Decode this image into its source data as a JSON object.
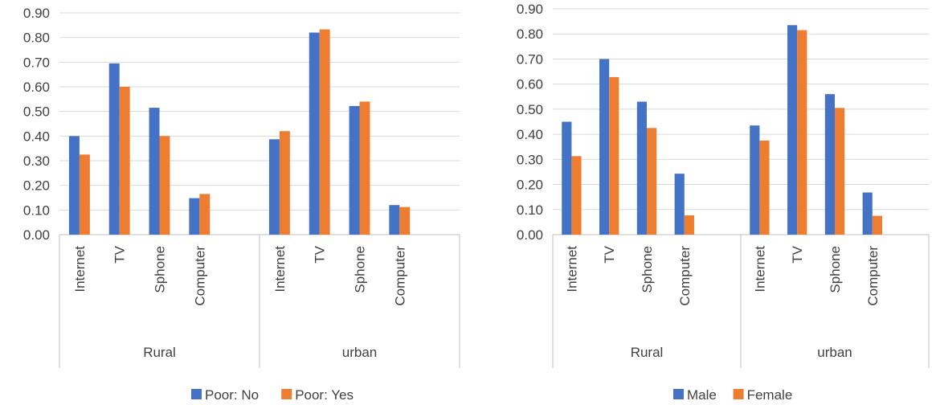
{
  "chart_data": [
    {
      "type": "bar",
      "y_ticks": [
        "0.00",
        "0.10",
        "0.20",
        "0.30",
        "0.40",
        "0.50",
        "0.60",
        "0.70",
        "0.80",
        "0.90"
      ],
      "ylim": [
        0,
        0.9
      ],
      "groups": [
        {
          "label": "Rural",
          "categories": [
            "Internet",
            "TV",
            "Sphone",
            "Computer"
          ]
        },
        {
          "label": "urban",
          "categories": [
            "Internet",
            "TV",
            "Sphone",
            "Computer"
          ]
        }
      ],
      "series": [
        {
          "name": "Poor: No",
          "color": "#4472c4",
          "values": [
            0.4,
            0.695,
            0.515,
            0.148,
            0.387,
            0.82,
            0.522,
            0.12
          ]
        },
        {
          "name": "Poor: Yes",
          "color": "#ed7d31",
          "values": [
            0.325,
            0.6,
            0.4,
            0.165,
            0.42,
            0.833,
            0.54,
            0.112
          ]
        }
      ],
      "grid": true,
      "legend": "bottom"
    },
    {
      "type": "bar",
      "y_ticks": [
        "0.00",
        "0.10",
        "0.20",
        "0.30",
        "0.40",
        "0.50",
        "0.60",
        "0.70",
        "0.80",
        "0.90"
      ],
      "ylim": [
        0,
        0.9
      ],
      "groups": [
        {
          "label": "Rural",
          "categories": [
            "Internet",
            "TV",
            "Sphone",
            "Computer"
          ]
        },
        {
          "label": "urban",
          "categories": [
            "Internet",
            "TV",
            "Sphone",
            "Computer"
          ]
        }
      ],
      "series": [
        {
          "name": "Male",
          "color": "#4472c4",
          "values": [
            0.45,
            0.7,
            0.53,
            0.243,
            0.435,
            0.835,
            0.56,
            0.168
          ]
        },
        {
          "name": "Female",
          "color": "#ed7d31",
          "values": [
            0.313,
            0.628,
            0.425,
            0.077,
            0.375,
            0.815,
            0.505,
            0.075
          ]
        }
      ],
      "grid": true,
      "legend": "bottom"
    }
  ]
}
